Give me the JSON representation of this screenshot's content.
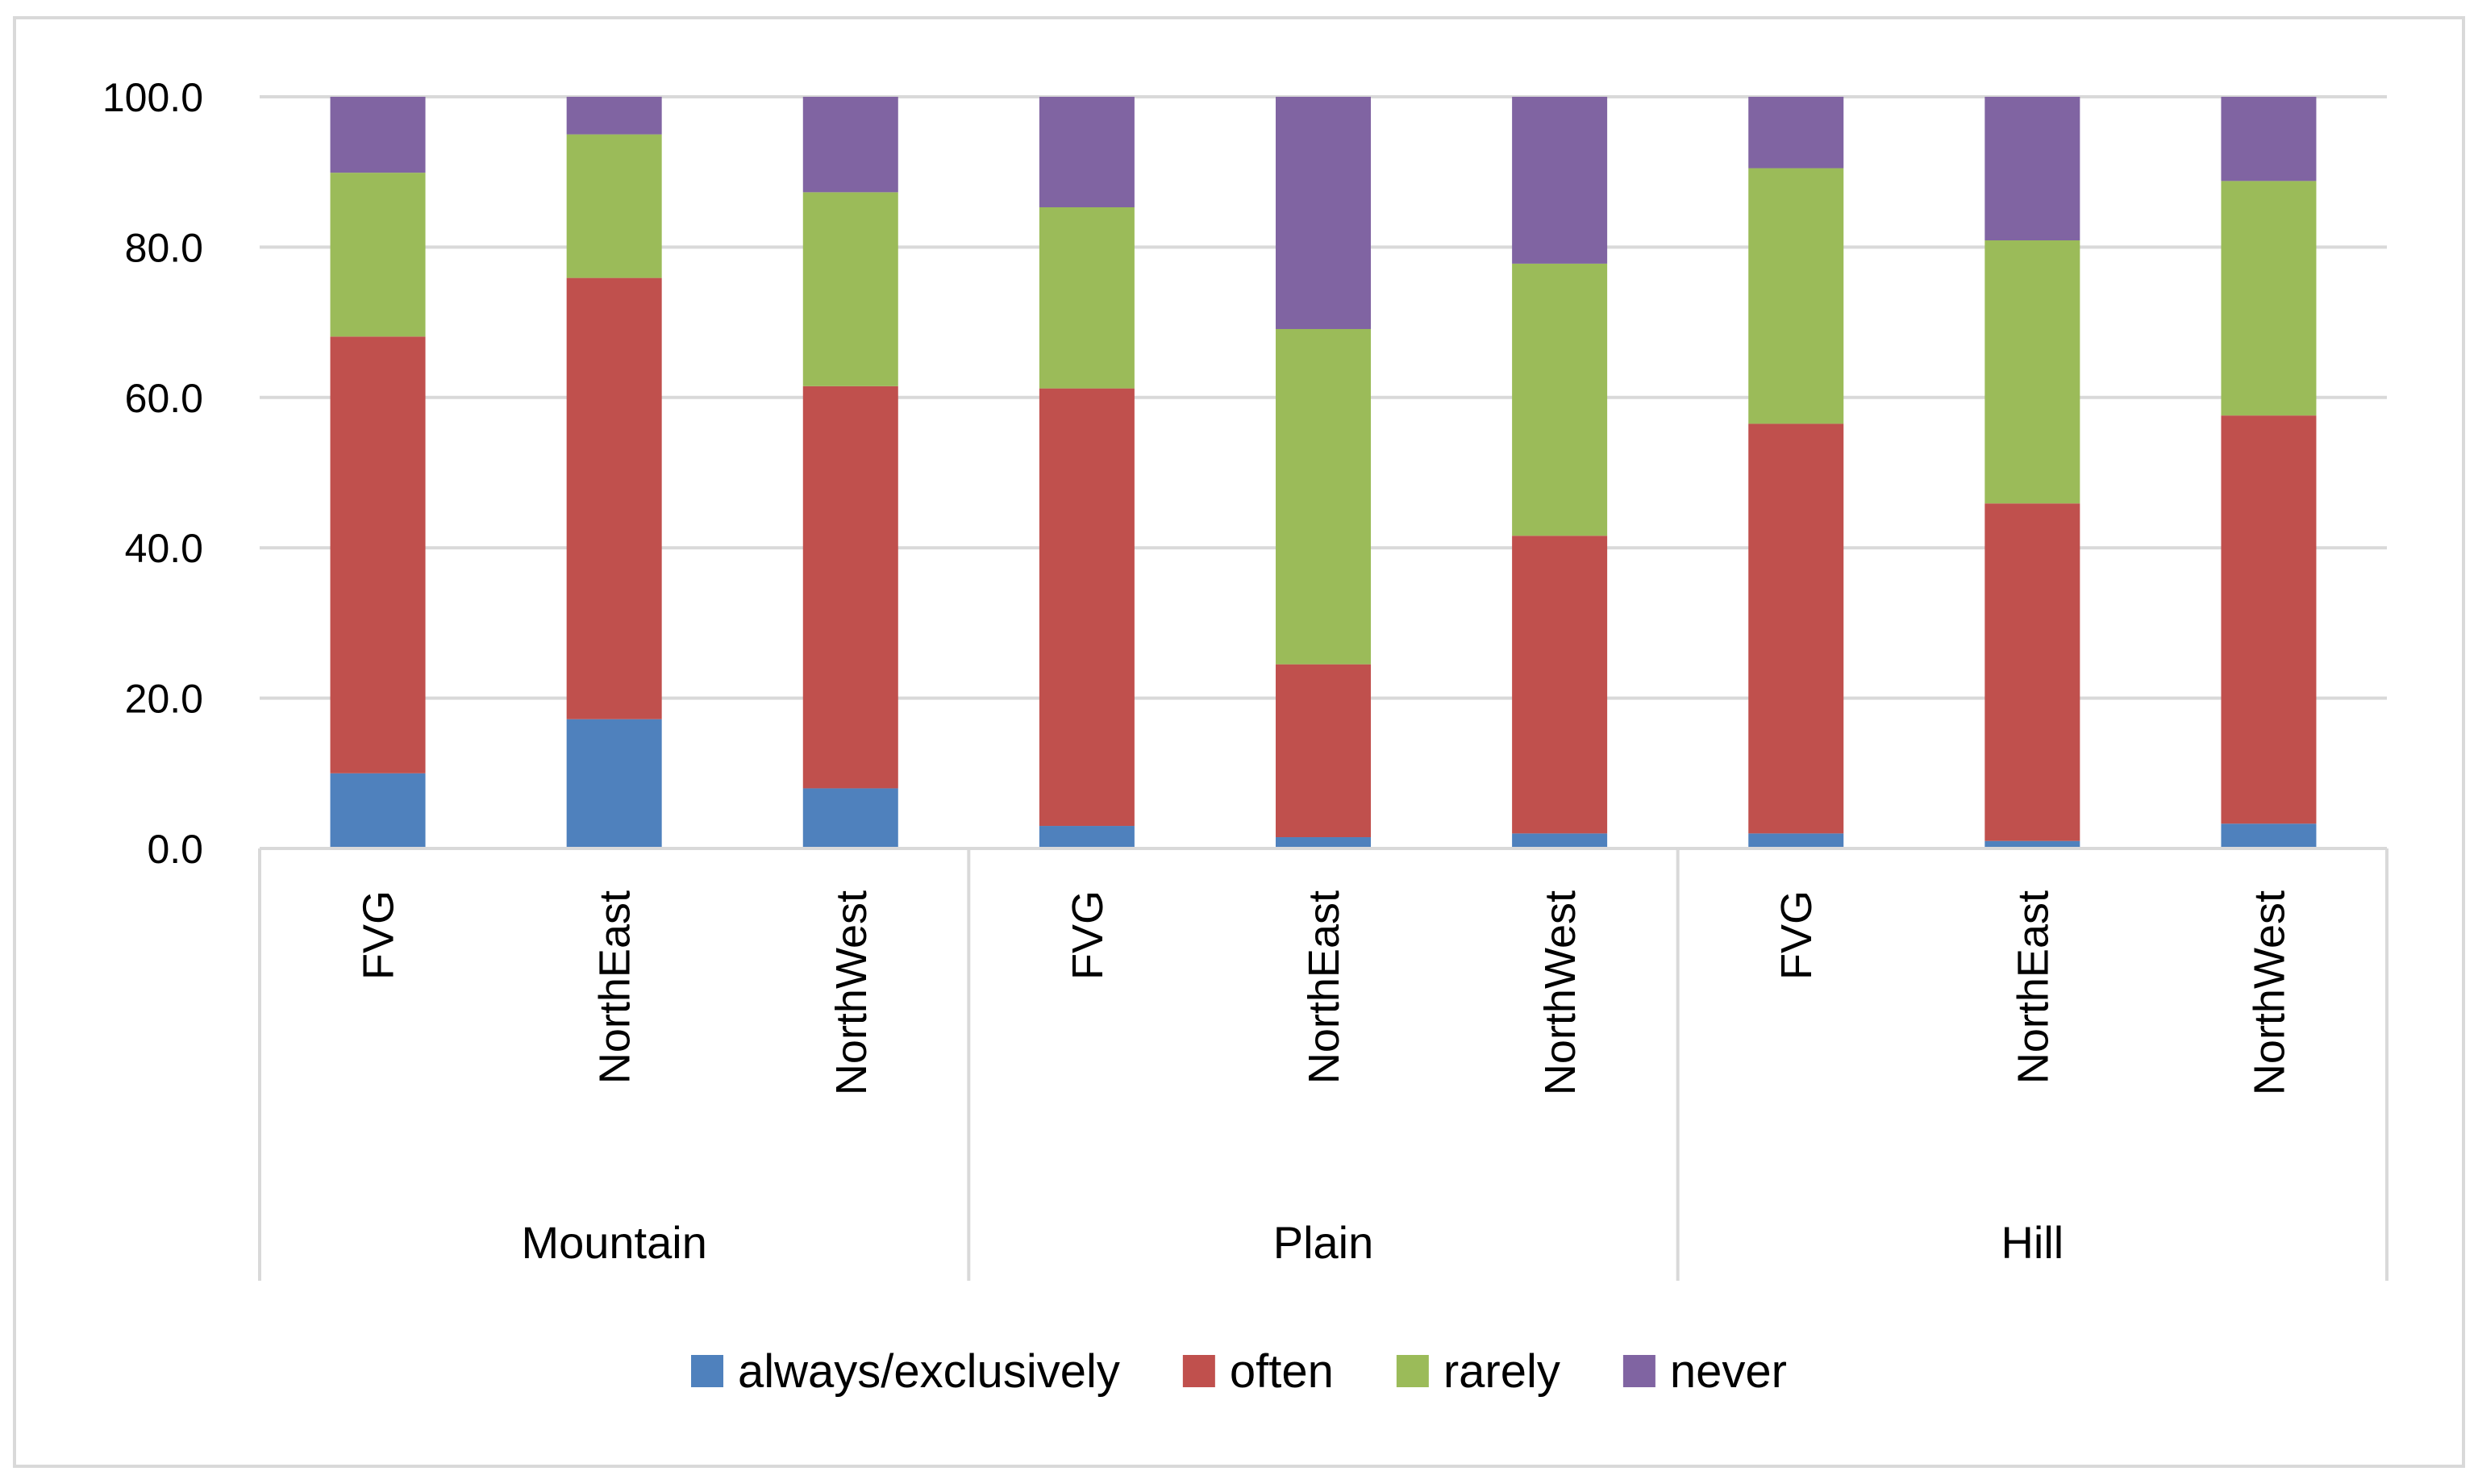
{
  "chart_data": {
    "type": "bar",
    "stacked": true,
    "groups": [
      {
        "label": "Mountain",
        "categories": [
          "FVG",
          "NorthEast",
          "NorthWest"
        ]
      },
      {
        "label": "Plain",
        "categories": [
          "FVG",
          "NorthEast",
          "NorthWest"
        ]
      },
      {
        "label": "Hill",
        "categories": [
          "FVG",
          "NorthEast",
          "NorthWest"
        ]
      }
    ],
    "series": [
      {
        "name": "always/exclusively",
        "color": "#4F81BD",
        "values": [
          10.0,
          17.2,
          8.0,
          3.0,
          1.5,
          2.0,
          2.0,
          1.0,
          3.3
        ]
      },
      {
        "name": "often",
        "color": "#C0504D",
        "values": [
          58.1,
          58.7,
          53.5,
          58.2,
          23.0,
          39.6,
          54.5,
          44.9,
          54.3
        ]
      },
      {
        "name": "rarely",
        "color": "#9BBB59",
        "values": [
          21.8,
          19.1,
          25.8,
          24.1,
          44.6,
          36.2,
          34.0,
          35.0,
          31.2
        ]
      },
      {
        "name": "never",
        "color": "#8064A2",
        "values": [
          10.1,
          5.0,
          12.7,
          14.7,
          30.9,
          22.2,
          9.5,
          19.1,
          11.2
        ]
      }
    ],
    "yaxis": {
      "min": 0,
      "max": 100,
      "ticks": [
        "0.0",
        "20.0",
        "40.0",
        "60.0",
        "80.0",
        "100.0"
      ],
      "grid": true
    },
    "legend_position": "bottom",
    "title": "",
    "xlabel": "",
    "ylabel": ""
  }
}
